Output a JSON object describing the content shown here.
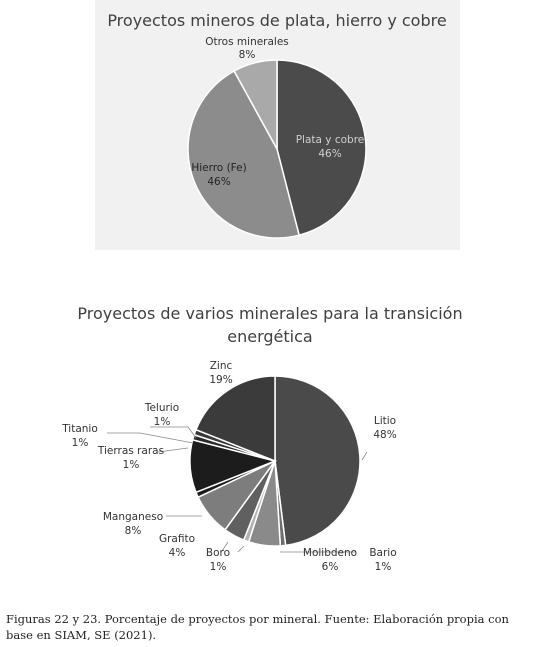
{
  "chart_data": [
    {
      "type": "pie",
      "title": "Proyectos mineros de plata, hierro y cobre",
      "slices": [
        {
          "label": "Plata y cobre",
          "value": 46,
          "value_label": "46%",
          "color": "#4b4b4b"
        },
        {
          "label": "Hierro (Fe)",
          "value": 46,
          "value_label": "46%",
          "color": "#8c8c8c"
        },
        {
          "label": "Otros minerales",
          "value": 8,
          "value_label": "8%",
          "color": "#a9a9a9"
        }
      ]
    },
    {
      "type": "pie",
      "title_lines": [
        "Proyectos de varios minerales para la transición",
        "energética"
      ],
      "slices": [
        {
          "label": "Litio",
          "value": 48,
          "value_label": "48%",
          "color": "#4a4a4a"
        },
        {
          "label": "Bario",
          "value": 1,
          "value_label": "1%",
          "color": "#6e6e6e"
        },
        {
          "label": "Molibdeno",
          "value": 6,
          "value_label": "6%",
          "color": "#8a8a8a"
        },
        {
          "label": "Boro",
          "value": 1,
          "value_label": "1%",
          "color": "#b4b4b4"
        },
        {
          "label": "Grafito",
          "value": 4,
          "value_label": "4%",
          "color": "#606060"
        },
        {
          "label": "Manganeso",
          "value": 8,
          "value_label": "8%",
          "color": "#7d7d7d"
        },
        {
          "label": "Tierras raras",
          "value": 1,
          "value_label": "1%",
          "color": "#1c1c1c"
        },
        {
          "label": "Tierras raras",
          "value": 10,
          "value_label": "",
          "color": "#1c1c1c"
        },
        {
          "label": "Titanio",
          "value": 1,
          "value_label": "1%",
          "color": "#2a2a2a"
        },
        {
          "label": "Telurio",
          "value": 1,
          "value_label": "1%",
          "color": "#3a3a3a"
        },
        {
          "label": "Zinc",
          "value": 19,
          "value_label": "19%",
          "color": "#3b3b3b"
        }
      ]
    }
  ],
  "caption": "Figuras 22 y 23. Porcentaje de proyectos por mineral. Fuente: Elaboración propia con base en SIAM, SE (2021)."
}
